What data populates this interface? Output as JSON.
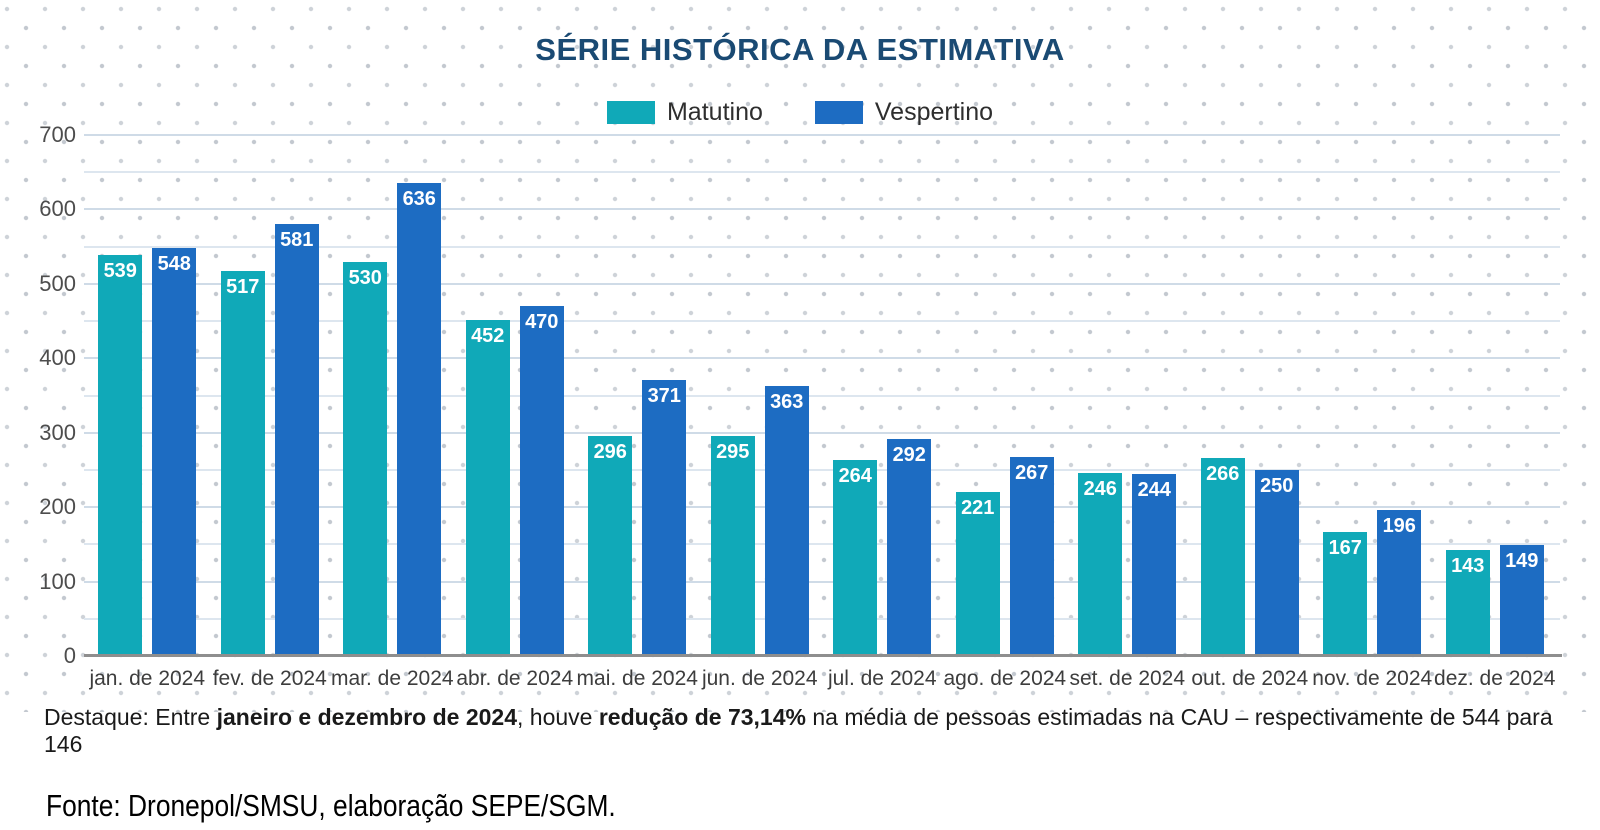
{
  "title": "SÉRIE HISTÓRICA DA ESTIMATIVA",
  "chart_data": {
    "type": "bar",
    "title": "SÉRIE HISTÓRICA DA ESTIMATIVA",
    "categories": [
      "jan. de 2024",
      "fev. de 2024",
      "mar. de 2024",
      "abr. de 2024",
      "mai. de 2024",
      "jun. de 2024",
      "jul. de 2024",
      "ago. de 2024",
      "set. de 2024",
      "out. de 2024",
      "nov. de 2024",
      "dez. de 2024"
    ],
    "series": [
      {
        "name": "Matutino",
        "color": "#10a9b8",
        "values": [
          539,
          517,
          530,
          452,
          296,
          295,
          264,
          221,
          246,
          266,
          167,
          143
        ]
      },
      {
        "name": "Vespertino",
        "color": "#1d6cc2",
        "values": [
          548,
          581,
          636,
          470,
          371,
          363,
          292,
          267,
          244,
          250,
          196,
          149
        ]
      }
    ],
    "xlabel": "",
    "ylabel": "",
    "ylim": [
      0,
      700
    ],
    "yticks": [
      0,
      100,
      200,
      300,
      400,
      500,
      600,
      700
    ],
    "grid_step": 50,
    "grid": true,
    "legend_position": "top",
    "value_labels": "inside-top-white"
  },
  "colors": {
    "title": "#1a4a73",
    "matutino": "#10a9b8",
    "vespertino": "#1d6cc2",
    "axis_line": "#8e8e8e",
    "gridline": "#d7e1eb"
  },
  "footnote": {
    "parts": [
      {
        "text": "Destaque: Entre ",
        "bold": false
      },
      {
        "text": "janeiro e dezembro de 2024",
        "bold": true
      },
      {
        "text": ", houve ",
        "bold": false
      },
      {
        "text": "redução de 73,14%",
        "bold": true
      },
      {
        "text": " na média de pessoas estimadas na CAU – respectivamente de 544 para 146",
        "bold": false
      }
    ]
  },
  "source": "Fonte: Dronepol/SMSU, elaboração SEPE/SGM."
}
